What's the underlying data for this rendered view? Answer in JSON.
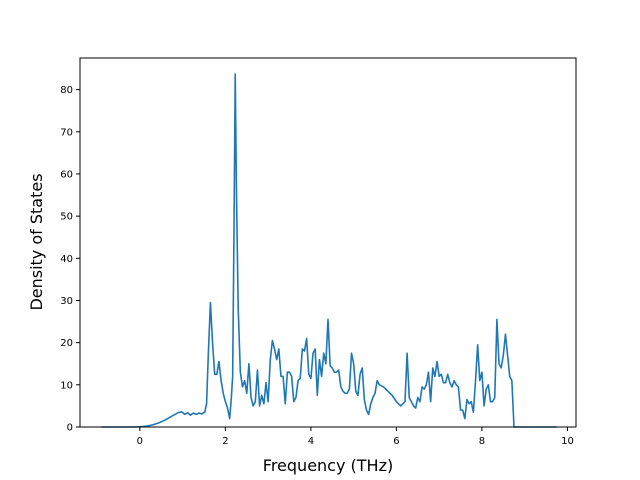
{
  "chart_data": {
    "type": "line",
    "xlabel": "Frequency (THz)",
    "ylabel": "Density of States",
    "xlim": [
      -1.4,
      10.2
    ],
    "ylim": [
      0,
      87.5
    ],
    "x_ticks": [
      0,
      2,
      4,
      6,
      8,
      10
    ],
    "y_ticks": [
      0,
      10,
      20,
      30,
      40,
      50,
      60,
      70,
      80
    ],
    "x_tick_labels": [
      "0",
      "2",
      "4",
      "6",
      "8",
      "10"
    ],
    "y_tick_labels": [
      "0",
      "10",
      "20",
      "30",
      "40",
      "50",
      "60",
      "70",
      "80"
    ],
    "grid": false,
    "line_color": "#1f77b4",
    "series": [
      {
        "points": [
          [
            -0.9,
            0
          ],
          [
            -0.2,
            0
          ],
          [
            0.0,
            0.05
          ],
          [
            0.15,
            0.2
          ],
          [
            0.3,
            0.5
          ],
          [
            0.45,
            1.0
          ],
          [
            0.6,
            1.7
          ],
          [
            0.75,
            2.6
          ],
          [
            0.9,
            3.4
          ],
          [
            0.98,
            3.6
          ],
          [
            1.05,
            3.0
          ],
          [
            1.12,
            3.4
          ],
          [
            1.18,
            2.8
          ],
          [
            1.25,
            3.3
          ],
          [
            1.32,
            3.0
          ],
          [
            1.38,
            3.3
          ],
          [
            1.45,
            3.1
          ],
          [
            1.52,
            3.6
          ],
          [
            1.56,
            5.5
          ],
          [
            1.6,
            17.0
          ],
          [
            1.65,
            29.5
          ],
          [
            1.7,
            20.0
          ],
          [
            1.75,
            12.5
          ],
          [
            1.8,
            12.5
          ],
          [
            1.85,
            15.5
          ],
          [
            1.9,
            11.0
          ],
          [
            1.95,
            8.0
          ],
          [
            2.0,
            6.0
          ],
          [
            2.05,
            4.5
          ],
          [
            2.1,
            2.0
          ],
          [
            2.14,
            7.0
          ],
          [
            2.17,
            12.0
          ],
          [
            2.2,
            45.0
          ],
          [
            2.23,
            83.7
          ],
          [
            2.26,
            55.0
          ],
          [
            2.3,
            28.0
          ],
          [
            2.35,
            13.0
          ],
          [
            2.4,
            9.5
          ],
          [
            2.45,
            11.0
          ],
          [
            2.5,
            8.0
          ],
          [
            2.55,
            15.0
          ],
          [
            2.6,
            7.0
          ],
          [
            2.65,
            5.0
          ],
          [
            2.7,
            6.0
          ],
          [
            2.75,
            13.5
          ],
          [
            2.8,
            5.0
          ],
          [
            2.85,
            7.5
          ],
          [
            2.9,
            5.5
          ],
          [
            2.95,
            10.5
          ],
          [
            3.0,
            6.0
          ],
          [
            3.05,
            16.0
          ],
          [
            3.1,
            20.5
          ],
          [
            3.15,
            18.5
          ],
          [
            3.2,
            16.0
          ],
          [
            3.25,
            18.5
          ],
          [
            3.3,
            12.0
          ],
          [
            3.35,
            12.0
          ],
          [
            3.4,
            5.5
          ],
          [
            3.45,
            13.0
          ],
          [
            3.5,
            13.0
          ],
          [
            3.55,
            12.0
          ],
          [
            3.6,
            6.0
          ],
          [
            3.65,
            7.0
          ],
          [
            3.7,
            11.0
          ],
          [
            3.75,
            11.5
          ],
          [
            3.8,
            18.5
          ],
          [
            3.85,
            18.0
          ],
          [
            3.9,
            21.0
          ],
          [
            3.95,
            12.5
          ],
          [
            4.0,
            11.5
          ],
          [
            4.05,
            17.5
          ],
          [
            4.1,
            18.5
          ],
          [
            4.15,
            7.5
          ],
          [
            4.2,
            16.0
          ],
          [
            4.25,
            12.0
          ],
          [
            4.3,
            17.5
          ],
          [
            4.35,
            15.0
          ],
          [
            4.4,
            25.5
          ],
          [
            4.45,
            14.5
          ],
          [
            4.5,
            14.0
          ],
          [
            4.55,
            13.0
          ],
          [
            4.6,
            13.0
          ],
          [
            4.65,
            13.5
          ],
          [
            4.7,
            9.5
          ],
          [
            4.75,
            8.5
          ],
          [
            4.8,
            8.0
          ],
          [
            4.85,
            8.0
          ],
          [
            4.9,
            9.0
          ],
          [
            4.95,
            17.5
          ],
          [
            5.0,
            15.0
          ],
          [
            5.05,
            8.5
          ],
          [
            5.1,
            7.5
          ],
          [
            5.15,
            12.5
          ],
          [
            5.2,
            14.0
          ],
          [
            5.25,
            6.5
          ],
          [
            5.3,
            4.0
          ],
          [
            5.35,
            3.0
          ],
          [
            5.4,
            5.5
          ],
          [
            5.45,
            7.0
          ],
          [
            5.5,
            8.0
          ],
          [
            5.55,
            11.0
          ],
          [
            5.6,
            10.0
          ],
          [
            5.7,
            9.5
          ],
          [
            5.8,
            8.5
          ],
          [
            5.9,
            7.5
          ],
          [
            6.0,
            6.0
          ],
          [
            6.1,
            5.0
          ],
          [
            6.2,
            6.0
          ],
          [
            6.25,
            17.5
          ],
          [
            6.3,
            7.0
          ],
          [
            6.4,
            5.0
          ],
          [
            6.45,
            4.5
          ],
          [
            6.5,
            7.0
          ],
          [
            6.55,
            6.0
          ],
          [
            6.6,
            9.5
          ],
          [
            6.65,
            9.0
          ],
          [
            6.7,
            10.0
          ],
          [
            6.75,
            13.0
          ],
          [
            6.8,
            6.0
          ],
          [
            6.85,
            14.0
          ],
          [
            6.9,
            12.0
          ],
          [
            6.95,
            15.5
          ],
          [
            7.0,
            12.0
          ],
          [
            7.05,
            12.5
          ],
          [
            7.1,
            10.5
          ],
          [
            7.15,
            10.5
          ],
          [
            7.2,
            12.5
          ],
          [
            7.25,
            10.5
          ],
          [
            7.3,
            9.5
          ],
          [
            7.35,
            11.0
          ],
          [
            7.4,
            10.0
          ],
          [
            7.45,
            9.5
          ],
          [
            7.5,
            4.0
          ],
          [
            7.55,
            4.0
          ],
          [
            7.6,
            2.0
          ],
          [
            7.65,
            6.5
          ],
          [
            7.7,
            5.5
          ],
          [
            7.75,
            6.0
          ],
          [
            7.8,
            3.5
          ],
          [
            7.85,
            11.0
          ],
          [
            7.9,
            19.5
          ],
          [
            7.95,
            11.0
          ],
          [
            8.0,
            13.0
          ],
          [
            8.05,
            5.0
          ],
          [
            8.1,
            9.0
          ],
          [
            8.15,
            10.0
          ],
          [
            8.2,
            6.0
          ],
          [
            8.25,
            6.0
          ],
          [
            8.3,
            7.0
          ],
          [
            8.35,
            25.5
          ],
          [
            8.4,
            15.0
          ],
          [
            8.45,
            14.0
          ],
          [
            8.5,
            17.0
          ],
          [
            8.55,
            22.0
          ],
          [
            8.6,
            17.0
          ],
          [
            8.65,
            12.0
          ],
          [
            8.7,
            11.0
          ],
          [
            8.75,
            0
          ],
          [
            9.75,
            0
          ]
        ]
      }
    ]
  }
}
